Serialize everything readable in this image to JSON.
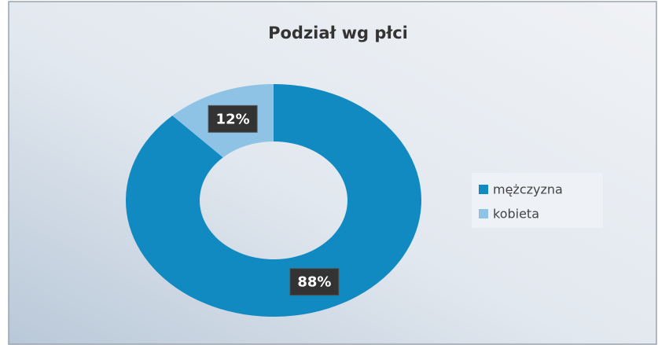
{
  "chart_data": {
    "type": "pie",
    "title": "Podział wg płci",
    "categories": [
      "mężczyzna",
      "kobieta"
    ],
    "values": [
      88,
      12
    ],
    "value_labels": [
      "88%",
      "12%"
    ],
    "colors": [
      "#1189c1",
      "#8fc3e6"
    ],
    "donut": true,
    "legend": "right"
  }
}
